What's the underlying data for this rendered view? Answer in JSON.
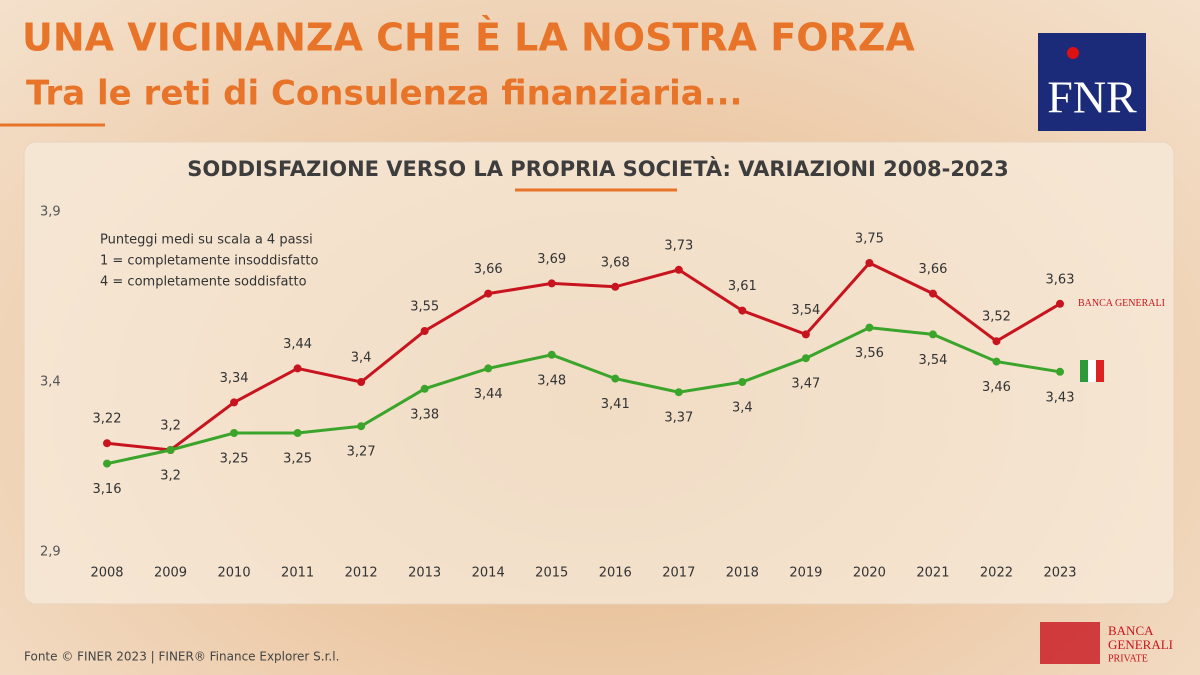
{
  "header": {
    "title": "UNA VICINANZA CHE È LA NOSTRA FORZA",
    "subtitle": "Tra le reti di Consulenza finanziaria..."
  },
  "logo": {
    "text": "FNR"
  },
  "chart_data": {
    "type": "line",
    "title": "SODDISFAZIONE VERSO LA PROPRIA SOCIETÀ: VARIAZIONI 2008-2023",
    "notes": [
      "Punteggi medi su scala a 4 passi",
      "1 = completamente insoddisfatto",
      "4 = completamente soddisfatto"
    ],
    "categories": [
      "2008",
      "2009",
      "2010",
      "2011",
      "2012",
      "2013",
      "2014",
      "2015",
      "2016",
      "2017",
      "2018",
      "2019",
      "2020",
      "2021",
      "2022",
      "2023"
    ],
    "series": [
      {
        "name": "BANCA GENERALI",
        "color": "#c8141e",
        "values": [
          3.22,
          3.2,
          3.34,
          3.44,
          3.4,
          3.55,
          3.66,
          3.69,
          3.68,
          3.73,
          3.61,
          3.54,
          3.75,
          3.66,
          3.52,
          3.63
        ],
        "value_labels": [
          "3,22",
          "3,2",
          "3,34",
          "3,44",
          "3,4",
          "3,55",
          "3,66",
          "3,69",
          "3,68",
          "3,73",
          "3,61",
          "3,54",
          "3,75",
          "3,66",
          "3,52",
          "3,63"
        ]
      },
      {
        "color": "#3ba52b",
        "values": [
          3.16,
          3.2,
          3.25,
          3.25,
          3.27,
          3.38,
          3.44,
          3.48,
          3.41,
          3.37,
          3.4,
          3.47,
          3.56,
          3.54,
          3.46,
          3.43
        ],
        "value_labels": [
          "3,16",
          "3,2",
          "3,25",
          "3,25",
          "3,27",
          "3,38",
          "3,44",
          "3,48",
          "3,41",
          "3,37",
          "3,4",
          "3,47",
          "3,56",
          "3,54",
          "3,46",
          "3,43"
        ]
      }
    ],
    "ylim": [
      2.9,
      3.9
    ],
    "yticks": [
      {
        "value": 2.9,
        "label": "2,9"
      },
      {
        "value": 3.4,
        "label": "3,4"
      },
      {
        "value": 3.9,
        "label": "3,9"
      }
    ]
  },
  "footer": {
    "source": "Fonte © FINER 2023 | FINER® Finance Explorer S.r.l.",
    "brand": [
      "BANCA",
      "GENERALI",
      "PRIVATE"
    ]
  }
}
